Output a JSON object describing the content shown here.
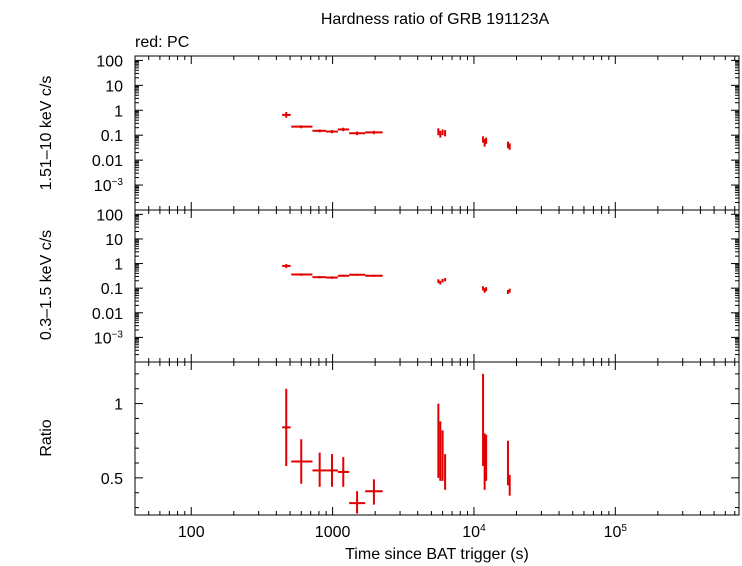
{
  "chart_data": {
    "type": "scatter",
    "title": "Hardness ratio of GRB 191123A",
    "legend_note": "red: PC",
    "xlabel": "Time since BAT trigger (s)",
    "x_scale": "log",
    "xlim": [
      40,
      750000
    ],
    "x_ticks": [
      {
        "value": 100,
        "label": "100"
      },
      {
        "value": 1000,
        "label": "1000"
      },
      {
        "value": 10000,
        "label": "10",
        "sup": "4"
      },
      {
        "value": 100000,
        "label": "10",
        "sup": "5"
      }
    ],
    "colors": {
      "series": "#e00000",
      "axes": "#000000",
      "background": "#ffffff"
    },
    "panels": [
      {
        "id": "hard",
        "ylabel": "1.51–10 keV c/s",
        "y_scale": "log",
        "ylim": [
          0.0001,
          150
        ],
        "y_ticks": [
          {
            "value": 100,
            "label": "100"
          },
          {
            "value": 10,
            "label": "10"
          },
          {
            "value": 1,
            "label": "1"
          },
          {
            "value": 0.1,
            "label": "0.1"
          },
          {
            "value": 0.01,
            "label": "0.01"
          },
          {
            "value": 0.001,
            "label": "10",
            "sup": "−3"
          }
        ],
        "points": [
          {
            "x": 470,
            "xlo": 440,
            "xhi": 505,
            "y": 0.65,
            "ylo": 0.5,
            "yhi": 0.85
          },
          {
            "x": 600,
            "xlo": 510,
            "xhi": 720,
            "y": 0.22,
            "ylo": 0.19,
            "yhi": 0.25
          },
          {
            "x": 810,
            "xlo": 720,
            "xhi": 900,
            "y": 0.15,
            "ylo": 0.13,
            "yhi": 0.17
          },
          {
            "x": 990,
            "xlo": 900,
            "xhi": 1090,
            "y": 0.14,
            "ylo": 0.12,
            "yhi": 0.16
          },
          {
            "x": 1190,
            "xlo": 1090,
            "xhi": 1310,
            "y": 0.17,
            "ylo": 0.145,
            "yhi": 0.2
          },
          {
            "x": 1490,
            "xlo": 1310,
            "xhi": 1700,
            "y": 0.12,
            "ylo": 0.1,
            "yhi": 0.14
          },
          {
            "x": 1960,
            "xlo": 1700,
            "xhi": 2260,
            "y": 0.13,
            "ylo": 0.11,
            "yhi": 0.15
          },
          {
            "x": 5600,
            "xlo": 5550,
            "xhi": 5650,
            "y": 0.14,
            "ylo": 0.1,
            "yhi": 0.19
          },
          {
            "x": 5780,
            "xlo": 5740,
            "xhi": 5830,
            "y": 0.11,
            "ylo": 0.08,
            "yhi": 0.15
          },
          {
            "x": 6000,
            "xlo": 5950,
            "xhi": 6050,
            "y": 0.13,
            "ylo": 0.1,
            "yhi": 0.17
          },
          {
            "x": 6250,
            "xlo": 6200,
            "xhi": 6300,
            "y": 0.12,
            "ylo": 0.09,
            "yhi": 0.16
          },
          {
            "x": 11600,
            "xlo": 11550,
            "xhi": 11650,
            "y": 0.07,
            "ylo": 0.05,
            "yhi": 0.09
          },
          {
            "x": 11900,
            "xlo": 11850,
            "xhi": 11950,
            "y": 0.05,
            "ylo": 0.035,
            "yhi": 0.07
          },
          {
            "x": 12200,
            "xlo": 12150,
            "xhi": 12250,
            "y": 0.06,
            "ylo": 0.045,
            "yhi": 0.08
          },
          {
            "x": 17400,
            "xlo": 17300,
            "xhi": 17500,
            "y": 0.04,
            "ylo": 0.03,
            "yhi": 0.055
          },
          {
            "x": 17900,
            "xlo": 17800,
            "xhi": 18000,
            "y": 0.035,
            "ylo": 0.026,
            "yhi": 0.047
          }
        ]
      },
      {
        "id": "soft",
        "ylabel": "0.3–1.5 keV c/s",
        "y_scale": "log",
        "ylim": [
          0.0001,
          150
        ],
        "y_ticks": [
          {
            "value": 100,
            "label": "100"
          },
          {
            "value": 10,
            "label": "10"
          },
          {
            "value": 1,
            "label": "1"
          },
          {
            "value": 0.1,
            "label": "0.1"
          },
          {
            "value": 0.01,
            "label": "0.01"
          },
          {
            "value": 0.001,
            "label": "10",
            "sup": "−3"
          }
        ],
        "points": [
          {
            "x": 470,
            "xlo": 440,
            "xhi": 505,
            "y": 0.8,
            "ylo": 0.65,
            "yhi": 0.95
          },
          {
            "x": 600,
            "xlo": 510,
            "xhi": 720,
            "y": 0.36,
            "ylo": 0.32,
            "yhi": 0.4
          },
          {
            "x": 810,
            "xlo": 720,
            "xhi": 900,
            "y": 0.28,
            "ylo": 0.25,
            "yhi": 0.31
          },
          {
            "x": 990,
            "xlo": 900,
            "xhi": 1090,
            "y": 0.27,
            "ylo": 0.24,
            "yhi": 0.3
          },
          {
            "x": 1190,
            "xlo": 1090,
            "xhi": 1310,
            "y": 0.32,
            "ylo": 0.29,
            "yhi": 0.35
          },
          {
            "x": 1490,
            "xlo": 1310,
            "xhi": 1700,
            "y": 0.35,
            "ylo": 0.32,
            "yhi": 0.38
          },
          {
            "x": 1960,
            "xlo": 1700,
            "xhi": 2260,
            "y": 0.32,
            "ylo": 0.29,
            "yhi": 0.35
          },
          {
            "x": 5600,
            "xlo": 5550,
            "xhi": 5650,
            "y": 0.19,
            "ylo": 0.16,
            "yhi": 0.23
          },
          {
            "x": 5780,
            "xlo": 5740,
            "xhi": 5830,
            "y": 0.17,
            "ylo": 0.14,
            "yhi": 0.2
          },
          {
            "x": 6000,
            "xlo": 5950,
            "xhi": 6050,
            "y": 0.2,
            "ylo": 0.17,
            "yhi": 0.24
          },
          {
            "x": 6250,
            "xlo": 6200,
            "xhi": 6300,
            "y": 0.22,
            "ylo": 0.19,
            "yhi": 0.26
          },
          {
            "x": 11600,
            "xlo": 11550,
            "xhi": 11650,
            "y": 0.1,
            "ylo": 0.08,
            "yhi": 0.12
          },
          {
            "x": 11900,
            "xlo": 11850,
            "xhi": 11950,
            "y": 0.08,
            "ylo": 0.065,
            "yhi": 0.1
          },
          {
            "x": 12200,
            "xlo": 12150,
            "xhi": 12250,
            "y": 0.09,
            "ylo": 0.075,
            "yhi": 0.11
          },
          {
            "x": 17400,
            "xlo": 17300,
            "xhi": 17500,
            "y": 0.07,
            "ylo": 0.058,
            "yhi": 0.085
          },
          {
            "x": 17900,
            "xlo": 17800,
            "xhi": 18000,
            "y": 0.08,
            "ylo": 0.066,
            "yhi": 0.095
          }
        ]
      },
      {
        "id": "ratio",
        "ylabel": "Ratio",
        "y_scale": "linear",
        "ylim": [
          0.25,
          1.28
        ],
        "y_ticks": [
          {
            "value": 1,
            "label": "1"
          },
          {
            "value": 0.5,
            "label": "0.5"
          }
        ],
        "points": [
          {
            "x": 470,
            "xlo": 440,
            "xhi": 505,
            "y": 0.84,
            "ylo": 0.58,
            "yhi": 1.1
          },
          {
            "x": 600,
            "xlo": 510,
            "xhi": 720,
            "y": 0.61,
            "ylo": 0.46,
            "yhi": 0.76
          },
          {
            "x": 810,
            "xlo": 720,
            "xhi": 900,
            "y": 0.55,
            "ylo": 0.44,
            "yhi": 0.67
          },
          {
            "x": 990,
            "xlo": 900,
            "xhi": 1090,
            "y": 0.55,
            "ylo": 0.44,
            "yhi": 0.66
          },
          {
            "x": 1190,
            "xlo": 1090,
            "xhi": 1310,
            "y": 0.54,
            "ylo": 0.44,
            "yhi": 0.64
          },
          {
            "x": 1490,
            "xlo": 1310,
            "xhi": 1700,
            "y": 0.33,
            "ylo": 0.26,
            "yhi": 0.41
          },
          {
            "x": 1960,
            "xlo": 1700,
            "xhi": 2260,
            "y": 0.41,
            "ylo": 0.32,
            "yhi": 0.49
          },
          {
            "x": 5600,
            "xlo": 5550,
            "xhi": 5650,
            "y": 0.75,
            "ylo": 0.5,
            "yhi": 1.0
          },
          {
            "x": 5780,
            "xlo": 5740,
            "xhi": 5830,
            "y": 0.68,
            "ylo": 0.48,
            "yhi": 0.88
          },
          {
            "x": 6000,
            "xlo": 5950,
            "xhi": 6050,
            "y": 0.65,
            "ylo": 0.48,
            "yhi": 0.82
          },
          {
            "x": 6250,
            "xlo": 6200,
            "xhi": 6300,
            "y": 0.54,
            "ylo": 0.42,
            "yhi": 0.66
          },
          {
            "x": 11600,
            "xlo": 11550,
            "xhi": 11650,
            "y": 0.78,
            "ylo": 0.58,
            "yhi": 1.2
          },
          {
            "x": 11900,
            "xlo": 11850,
            "xhi": 11950,
            "y": 0.6,
            "ylo": 0.42,
            "yhi": 0.8
          },
          {
            "x": 12200,
            "xlo": 12150,
            "xhi": 12250,
            "y": 0.67,
            "ylo": 0.48,
            "yhi": 0.79
          },
          {
            "x": 17400,
            "xlo": 17300,
            "xhi": 17500,
            "y": 0.6,
            "ylo": 0.45,
            "yhi": 0.75
          },
          {
            "x": 17900,
            "xlo": 17800,
            "xhi": 18000,
            "y": 0.45,
            "ylo": 0.38,
            "yhi": 0.52
          }
        ]
      }
    ]
  }
}
